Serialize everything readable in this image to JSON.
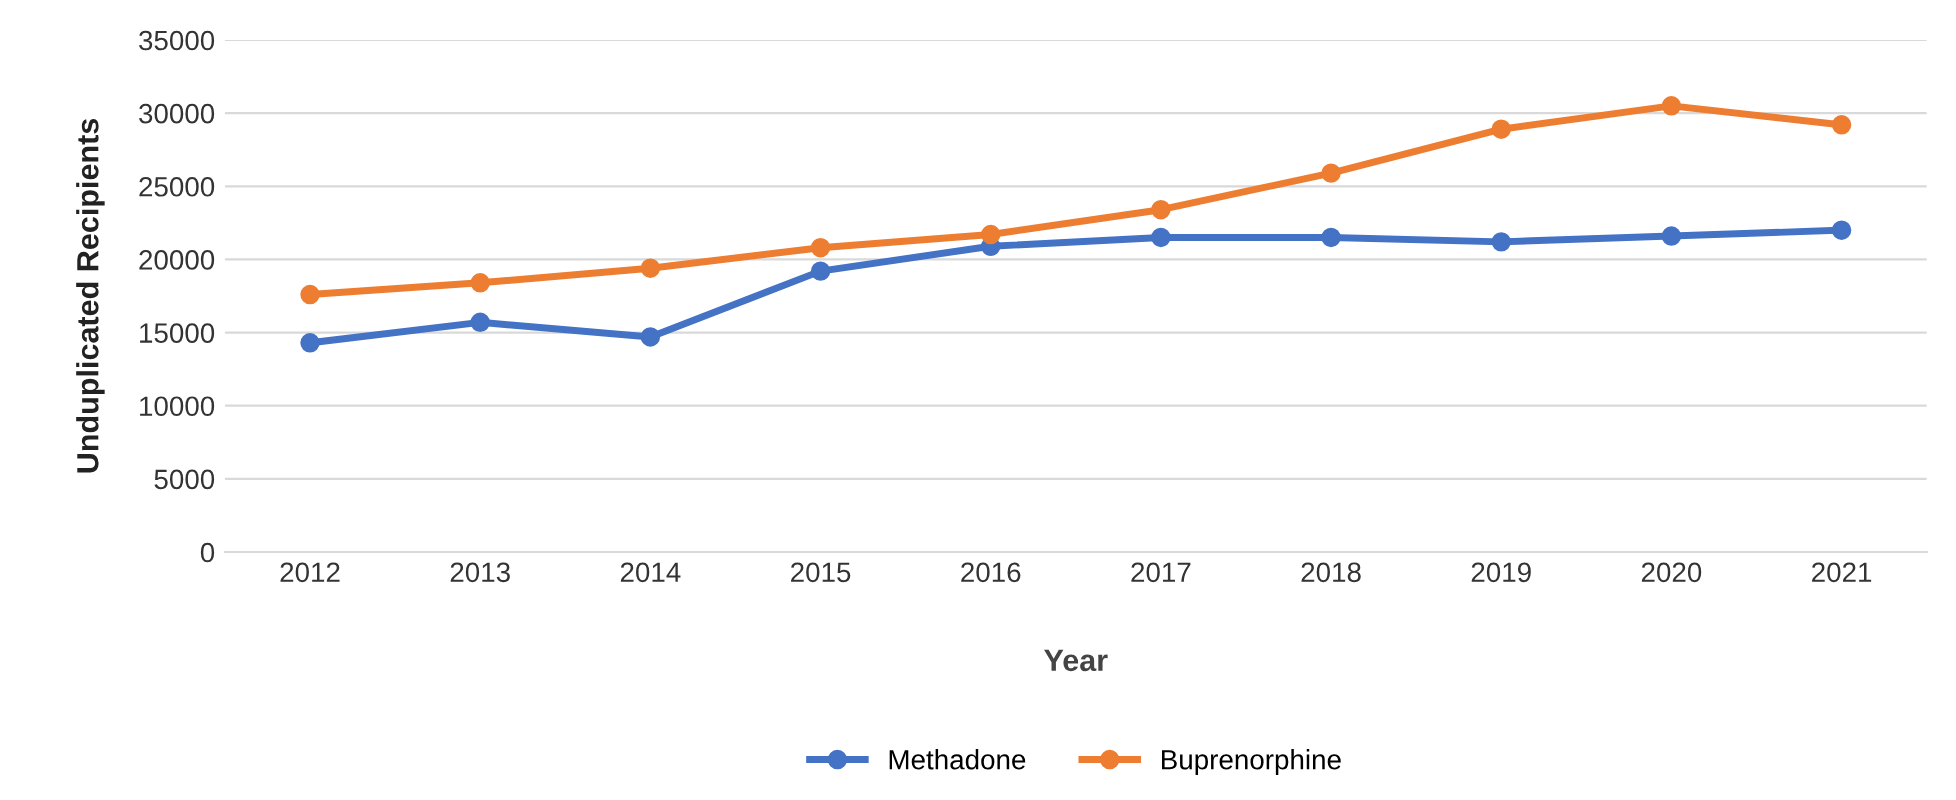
{
  "chart_data": {
    "type": "line",
    "xlabel": "Year",
    "ylabel": "Unduplicated Recipients",
    "categories": [
      "2012",
      "2013",
      "2014",
      "2015",
      "2016",
      "2017",
      "2018",
      "2019",
      "2020",
      "2021"
    ],
    "series": [
      {
        "name": "Methadone",
        "color": "#4472c4",
        "values": [
          14300,
          15700,
          14700,
          19200,
          20900,
          21500,
          21500,
          21200,
          21600,
          22000
        ]
      },
      {
        "name": "Buprenorphine",
        "color": "#ed7d31",
        "values": [
          17600,
          18400,
          19400,
          20800,
          21700,
          23400,
          25900,
          28900,
          30500,
          29200
        ]
      }
    ],
    "ylim": [
      0,
      35000
    ],
    "yticks": [
      0,
      5000,
      10000,
      15000,
      20000,
      25000,
      30000,
      35000
    ],
    "grid": "y",
    "legend": "bottom",
    "marker": "circle",
    "line_style": "solid"
  }
}
